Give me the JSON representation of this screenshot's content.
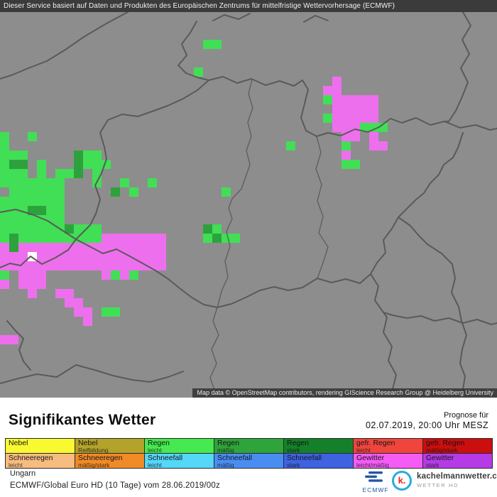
{
  "top_bar": {
    "text": "Dieser Service basiert auf Daten und Produkten des Europäischen Zentrums für mittelfristige Wettervorhersage (ECMWF)"
  },
  "title": "Signifikantes Wetter",
  "forecast": {
    "label": "Prognose für",
    "datetime": "02.07.2019, 20:00 Uhr MESZ"
  },
  "footer": {
    "region": "Ungarn",
    "model": "ECMWF/Global Euro HD (10 Tage) vom 28.06.2019/00z"
  },
  "logos": {
    "ecmwf": {
      "label": "ECMWF",
      "color": "#2456a4"
    },
    "kachelmann": {
      "letter": "k.",
      "name": "kachelmannwetter.com",
      "sub": "WETTER HD",
      "circle_color": "#29abe2",
      "letter_color": "#e8232a"
    }
  },
  "legend": {
    "rows": [
      [
        {
          "label": "Nebel",
          "sub": "",
          "color": "#f9f932"
        },
        {
          "label": "Nebel",
          "sub": "Reifbildung",
          "color": "#b3a32b"
        },
        {
          "label": "Regen",
          "sub": "leicht",
          "color": "#46e94f"
        },
        {
          "label": "Regen",
          "sub": "mäßig",
          "color": "#2ea43a"
        },
        {
          "label": "Regen",
          "sub": "stark",
          "color": "#14812a"
        },
        {
          "label": "gefr. Regen",
          "sub": "leicht",
          "color": "#ef453c"
        },
        {
          "label": "gefr. Regen",
          "sub": "mäßig/stark",
          "color": "#cb0e0e"
        }
      ],
      [
        {
          "label": "Schneeregen",
          "sub": "leicht",
          "color": "#f6bc80"
        },
        {
          "label": "Schneeregen",
          "sub": "mäßig/stark",
          "color": "#f08b28"
        },
        {
          "label": "Schneefall",
          "sub": "leicht",
          "color": "#55d7f8"
        },
        {
          "label": "Schneefall",
          "sub": "mäßig",
          "color": "#4a8df2"
        },
        {
          "label": "Schneefall",
          "sub": "stark",
          "color": "#3f63e0"
        },
        {
          "label": "Gewitter",
          "sub": "leicht/mäßig",
          "color": "#f55cf5"
        },
        {
          "label": "Gewitter",
          "sub": "stark",
          "color": "#b43be6"
        }
      ]
    ]
  },
  "map": {
    "background": "#8d8d8d",
    "border_color": "#5a5a5a",
    "cell_size": 13,
    "attribution": "Map data © OpenStreetMap contributors, rendering GIScience Research Group @ Heidelberg University",
    "palette": {
      "g": "#41df55",
      "d": "#2da23c",
      "m": "#ee6fee",
      "w": "#ffffff"
    },
    "grid": [
      "......................................................",
      "......................................................",
      "......................................................",
      "......................gg..............................",
      "......................................................",
      "......................................................",
      ".....................g................................",
      "....................................m.................",
      "...................................mm.................",
      "...................................gmmmmm.............",
      "....................................mmmmm.............",
      "...................................gmmmmm.............",
      "....................................mmmggg............",
      "g..g.................................mm.m.............",
      "g..............................g.....g..mm............",
      "ggg.....dgg..........................m................",
      "gdd.g...dggg.........................gg...............",
      "ggg.g.ggd.g...........................................",
      "ggggggg...g..g..g.....................................",
      ".gggggg.....d.g.........g.............................",
      "ggggggg...............................................",
      "gggddgg...............................................",
      "ggggggg...............................................",
      "gggggggdggg...........dg..............................",
      "gdgggggggggmmmmmmm....gdgg............................",
      "mdmmmmmmmmmmmmmmmm....................................",
      "mmmwmmmmmmmmmmmmmm....................................",
      "mmmmmmmmmmmmmmmmmm....................................",
      "g.mmm......mgmg.......................................",
      "m.mmm.................................................",
      "...m..mm..............................................",
      ".......mm.............................................",
      "........mm.gg.........................................",
      ".........m............................................",
      "......................................................",
      "mm....................................................",
      "......................................................",
      "......................................................",
      "......................................................",
      "......................................................",
      "......................................................",
      "......................................................"
    ],
    "borders": [
      "180,0 150,16 118,35 92,53 66,69 40,79 16,89 0,94",
      "300,12 316,4 336,10 352,2",
      "428,14 444,5 462,12",
      "277,13 268,29 256,45 263,61 251,75 262,86 278,92 294,96 314,91 334,100 354,94 374,103 394,97 414,104 426,96 434,109 429,129 424,149 431,167 446,175 462,170 480,174 500,165 518,169 534,162 550,150 566,156 586,149 606,159 626,154 648,163 670,159 690,166 700,164",
      "294,96 278,110 258,122 236,132 214,140 194,147 172,144 152,152 141,170 147,190 150,207 143,227 134,244 141,264 135,284 127,300",
      "652,0 663,19 651,39 661,59 649,79 659,99 651,119 642,139 632,154 626,154",
      "0,282 22,278 45,285 67,294 87,307 107,320 127,300",
      "107,320 96,335 78,346 59,355 43,344 29,357 14,354 0,360",
      "107,320 126,330 145,340 164,334 183,344 201,354 219,364 237,376 253,389 270,402 287,412 306,416 326,411 346,402 366,392 386,387 406,392 426,388 447,375",
      "447,375 467,381 487,376 507,382 522,369 533,386 528,406 540,423 553,427 573,431 593,428 612,435 632,431 652,438 672,433 692,440 700,438",
      "522,369 531,353 543,339 540,321 552,305 561,289 573,277 585,265 597,255 606,241 618,229 625,215 638,205 645,191 652,170",
      "561,289 578,301 590,315 602,327 622,340 637,355 641,375 636,395 646,415 650,435 657,455 651,475 648,495 655,513 652,531",
      "10,435 22,449 33,460 27,476 33,492 43,504",
      "0,523 26,516 52,510 80,514 107,497 133,504 159,512 186,518 211,521 237,514 258,506",
      "540,423 545,430 540,451 552,471 547,491 558,511 553,531"
    ],
    "rivers": [
      "355,95 350,115 356,135 349,155 354,175 347,195 352,215 345,235 340,249 327,263 322,276 327,291 319,309 324,330 317,351 321,373 312,393 307,413 306,416",
      "306,416 300,435 308,455 298,475 305,495 296,515 303,535",
      "446,175 452,198 445,221 453,243 447,266 455,288 449,311 462,331 455,353 447,375"
    ]
  }
}
